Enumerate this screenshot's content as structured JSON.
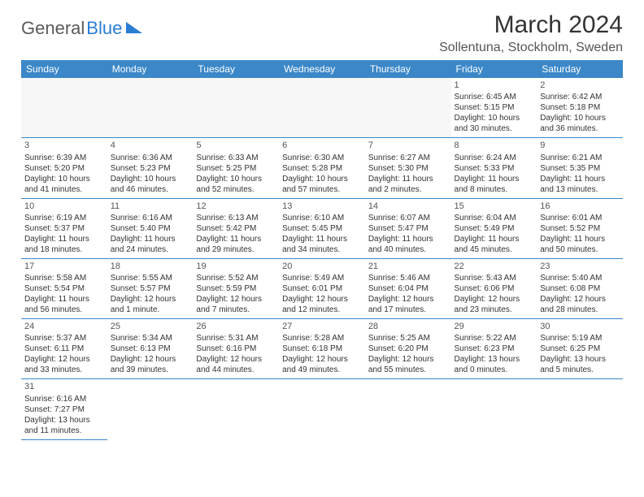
{
  "logo": {
    "part1": "General",
    "part2": "Blue"
  },
  "title": "March 2024",
  "location": "Sollentuna, Stockholm, Sweden",
  "colors": {
    "header_bg": "#3b87c8",
    "header_text": "#ffffff",
    "cell_border": "#3b87c8",
    "text": "#333333",
    "logo_gray": "#5a5a5a",
    "logo_blue": "#2b7cd3"
  },
  "weekdays": [
    "Sunday",
    "Monday",
    "Tuesday",
    "Wednesday",
    "Thursday",
    "Friday",
    "Saturday"
  ],
  "weeks": [
    [
      null,
      null,
      null,
      null,
      null,
      {
        "n": "1",
        "sunrise": "Sunrise: 6:45 AM",
        "sunset": "Sunset: 5:15 PM",
        "daylight": "Daylight: 10 hours and 30 minutes."
      },
      {
        "n": "2",
        "sunrise": "Sunrise: 6:42 AM",
        "sunset": "Sunset: 5:18 PM",
        "daylight": "Daylight: 10 hours and 36 minutes."
      }
    ],
    [
      {
        "n": "3",
        "sunrise": "Sunrise: 6:39 AM",
        "sunset": "Sunset: 5:20 PM",
        "daylight": "Daylight: 10 hours and 41 minutes."
      },
      {
        "n": "4",
        "sunrise": "Sunrise: 6:36 AM",
        "sunset": "Sunset: 5:23 PM",
        "daylight": "Daylight: 10 hours and 46 minutes."
      },
      {
        "n": "5",
        "sunrise": "Sunrise: 6:33 AM",
        "sunset": "Sunset: 5:25 PM",
        "daylight": "Daylight: 10 hours and 52 minutes."
      },
      {
        "n": "6",
        "sunrise": "Sunrise: 6:30 AM",
        "sunset": "Sunset: 5:28 PM",
        "daylight": "Daylight: 10 hours and 57 minutes."
      },
      {
        "n": "7",
        "sunrise": "Sunrise: 6:27 AM",
        "sunset": "Sunset: 5:30 PM",
        "daylight": "Daylight: 11 hours and 2 minutes."
      },
      {
        "n": "8",
        "sunrise": "Sunrise: 6:24 AM",
        "sunset": "Sunset: 5:33 PM",
        "daylight": "Daylight: 11 hours and 8 minutes."
      },
      {
        "n": "9",
        "sunrise": "Sunrise: 6:21 AM",
        "sunset": "Sunset: 5:35 PM",
        "daylight": "Daylight: 11 hours and 13 minutes."
      }
    ],
    [
      {
        "n": "10",
        "sunrise": "Sunrise: 6:19 AM",
        "sunset": "Sunset: 5:37 PM",
        "daylight": "Daylight: 11 hours and 18 minutes."
      },
      {
        "n": "11",
        "sunrise": "Sunrise: 6:16 AM",
        "sunset": "Sunset: 5:40 PM",
        "daylight": "Daylight: 11 hours and 24 minutes."
      },
      {
        "n": "12",
        "sunrise": "Sunrise: 6:13 AM",
        "sunset": "Sunset: 5:42 PM",
        "daylight": "Daylight: 11 hours and 29 minutes."
      },
      {
        "n": "13",
        "sunrise": "Sunrise: 6:10 AM",
        "sunset": "Sunset: 5:45 PM",
        "daylight": "Daylight: 11 hours and 34 minutes."
      },
      {
        "n": "14",
        "sunrise": "Sunrise: 6:07 AM",
        "sunset": "Sunset: 5:47 PM",
        "daylight": "Daylight: 11 hours and 40 minutes."
      },
      {
        "n": "15",
        "sunrise": "Sunrise: 6:04 AM",
        "sunset": "Sunset: 5:49 PM",
        "daylight": "Daylight: 11 hours and 45 minutes."
      },
      {
        "n": "16",
        "sunrise": "Sunrise: 6:01 AM",
        "sunset": "Sunset: 5:52 PM",
        "daylight": "Daylight: 11 hours and 50 minutes."
      }
    ],
    [
      {
        "n": "17",
        "sunrise": "Sunrise: 5:58 AM",
        "sunset": "Sunset: 5:54 PM",
        "daylight": "Daylight: 11 hours and 56 minutes."
      },
      {
        "n": "18",
        "sunrise": "Sunrise: 5:55 AM",
        "sunset": "Sunset: 5:57 PM",
        "daylight": "Daylight: 12 hours and 1 minute."
      },
      {
        "n": "19",
        "sunrise": "Sunrise: 5:52 AM",
        "sunset": "Sunset: 5:59 PM",
        "daylight": "Daylight: 12 hours and 7 minutes."
      },
      {
        "n": "20",
        "sunrise": "Sunrise: 5:49 AM",
        "sunset": "Sunset: 6:01 PM",
        "daylight": "Daylight: 12 hours and 12 minutes."
      },
      {
        "n": "21",
        "sunrise": "Sunrise: 5:46 AM",
        "sunset": "Sunset: 6:04 PM",
        "daylight": "Daylight: 12 hours and 17 minutes."
      },
      {
        "n": "22",
        "sunrise": "Sunrise: 5:43 AM",
        "sunset": "Sunset: 6:06 PM",
        "daylight": "Daylight: 12 hours and 23 minutes."
      },
      {
        "n": "23",
        "sunrise": "Sunrise: 5:40 AM",
        "sunset": "Sunset: 6:08 PM",
        "daylight": "Daylight: 12 hours and 28 minutes."
      }
    ],
    [
      {
        "n": "24",
        "sunrise": "Sunrise: 5:37 AM",
        "sunset": "Sunset: 6:11 PM",
        "daylight": "Daylight: 12 hours and 33 minutes."
      },
      {
        "n": "25",
        "sunrise": "Sunrise: 5:34 AM",
        "sunset": "Sunset: 6:13 PM",
        "daylight": "Daylight: 12 hours and 39 minutes."
      },
      {
        "n": "26",
        "sunrise": "Sunrise: 5:31 AM",
        "sunset": "Sunset: 6:16 PM",
        "daylight": "Daylight: 12 hours and 44 minutes."
      },
      {
        "n": "27",
        "sunrise": "Sunrise: 5:28 AM",
        "sunset": "Sunset: 6:18 PM",
        "daylight": "Daylight: 12 hours and 49 minutes."
      },
      {
        "n": "28",
        "sunrise": "Sunrise: 5:25 AM",
        "sunset": "Sunset: 6:20 PM",
        "daylight": "Daylight: 12 hours and 55 minutes."
      },
      {
        "n": "29",
        "sunrise": "Sunrise: 5:22 AM",
        "sunset": "Sunset: 6:23 PM",
        "daylight": "Daylight: 13 hours and 0 minutes."
      },
      {
        "n": "30",
        "sunrise": "Sunrise: 5:19 AM",
        "sunset": "Sunset: 6:25 PM",
        "daylight": "Daylight: 13 hours and 5 minutes."
      }
    ],
    [
      {
        "n": "31",
        "sunrise": "Sunrise: 6:16 AM",
        "sunset": "Sunset: 7:27 PM",
        "daylight": "Daylight: 13 hours and 11 minutes."
      },
      null,
      null,
      null,
      null,
      null,
      null
    ]
  ]
}
